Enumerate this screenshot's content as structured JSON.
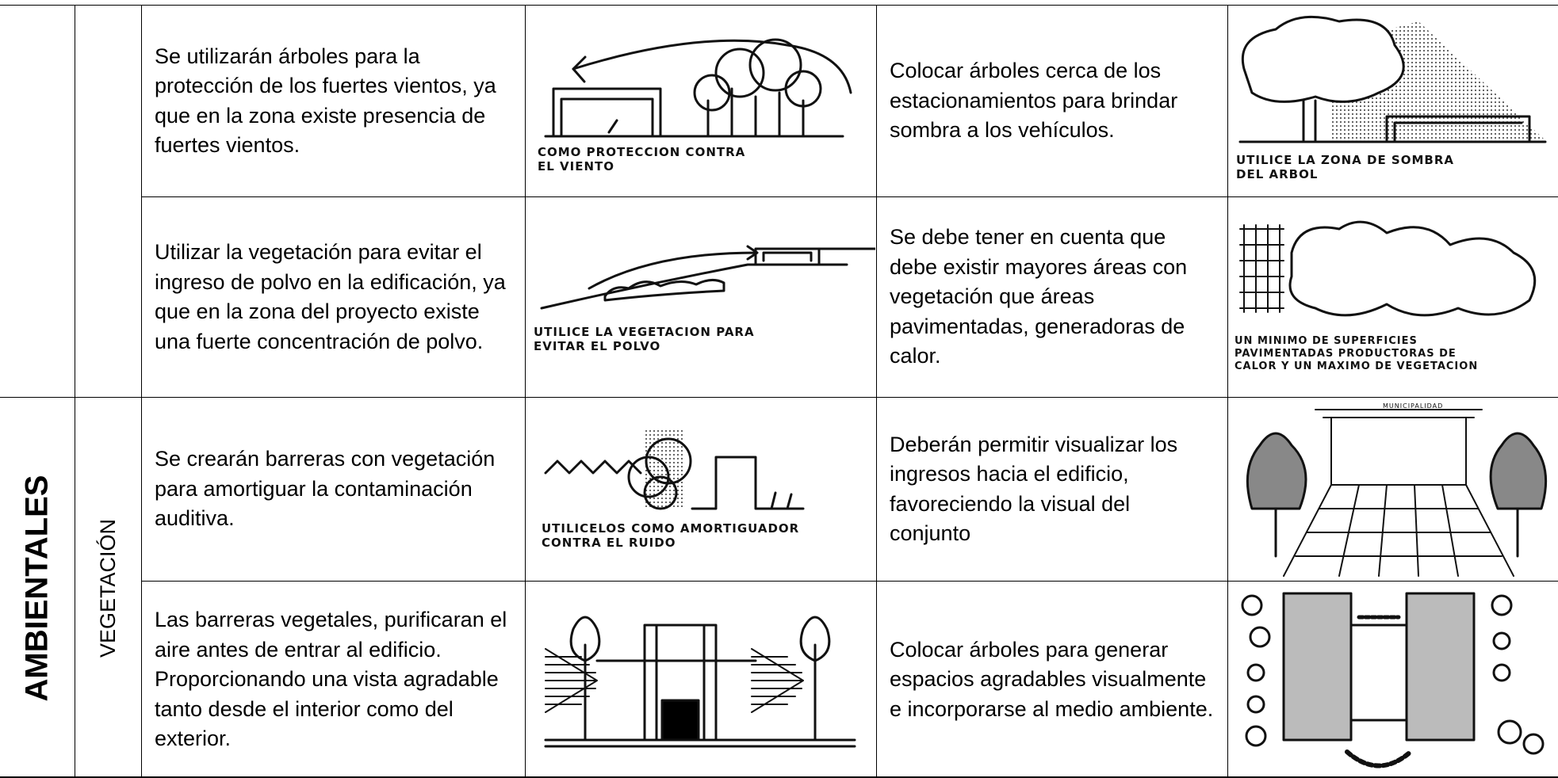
{
  "table": {
    "section": "AMBIENTALES",
    "subsection": "VEGETACIÓN",
    "rows": [
      {
        "criterion": "Se utilizarán árboles para la protección de los fuertes vientos, ya que en la zona existe presencia de fuertes vientos.",
        "sketch_caption": [
          "COMO PROTECCION CONTRA",
          "EL VIENTO"
        ],
        "criterion_2": "Colocar árboles cerca de los estacionamientos para brindar sombra a los vehículos.",
        "sketch_2_caption": [
          "UTILICE LA ZONA DE SOMBRA",
          "DEL ARBOL"
        ]
      },
      {
        "criterion": "Utilizar la vegetación para evitar el ingreso de polvo en la edificación, ya que en la zona del proyecto existe una fuerte concentración de polvo.",
        "sketch_caption": [
          "UTILICE LA VEGETACION PARA",
          "EVITAR EL POLVO"
        ],
        "criterion_2": "Se debe tener en cuenta que debe existir mayores áreas con vegetación que áreas pavimentadas, generadoras de calor.",
        "sketch_2_caption": [
          "UN MINIMO DE SUPERFICIES",
          "PAVIMENTADAS PRODUCTORAS DE",
          "CALOR Y UN MAXIMO DE VEGETACION"
        ]
      },
      {
        "criterion": "Se crearán barreras con vegetación para amortiguar la contaminación auditiva.",
        "sketch_caption": [
          "UTILICELOS COMO AMORTIGUADOR",
          "CONTRA EL RUIDO"
        ],
        "criterion_2": "Deberán permitir visualizar los ingresos hacia el edificio, favoreciendo la visual del conjunto",
        "sketch_2_caption": [
          "MUNICIPALIDAD"
        ]
      },
      {
        "criterion": "Las barreras vegetales, purificaran el aire antes de entrar al edificio.\nProporcionando una vista agradable tanto desde el interior como del exterior.",
        "criterion_2": "Colocar árboles para generar espacios agradables visualmente e incorporarse al medio ambiente."
      }
    ]
  }
}
